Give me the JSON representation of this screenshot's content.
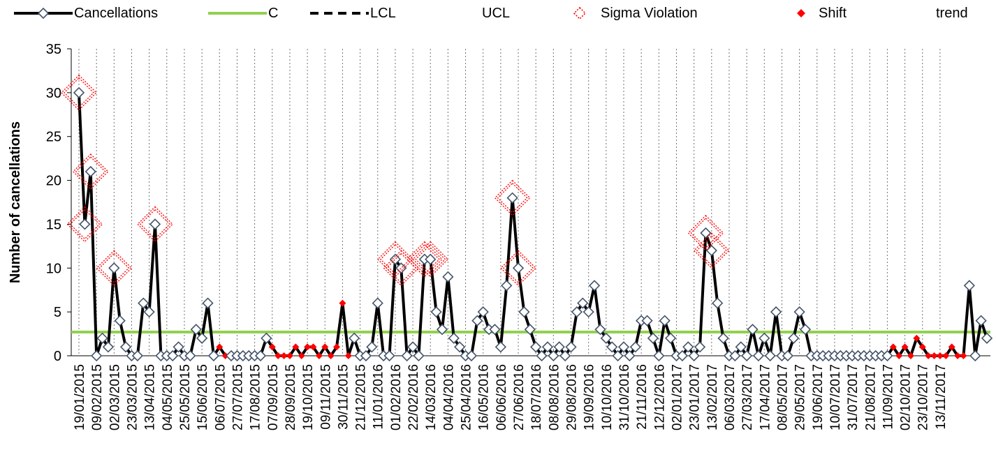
{
  "legend": [
    {
      "label": "Cancellations",
      "symbol": "line-diamond"
    },
    {
      "label": "C",
      "symbol": "green-line"
    },
    {
      "label": "LCL",
      "symbol": "dashed-line"
    },
    {
      "label": "UCL",
      "symbol": "none"
    },
    {
      "label": "Sigma Violation",
      "symbol": "red-dotted-diamond"
    },
    {
      "label": "Shift",
      "symbol": "red-diamond"
    },
    {
      "label": "trend",
      "symbol": "none"
    }
  ],
  "colors": {
    "series": "#000000",
    "marker_edge": "#44546a",
    "center_line": "#92d050",
    "violation": "#ff0000"
  },
  "chart_data": {
    "type": "line",
    "ylabel": "Number of cancellations",
    "ylim": [
      0,
      35
    ],
    "yticks": [
      0,
      5,
      10,
      15,
      20,
      25,
      30,
      35
    ],
    "center_line": 2.7,
    "x_tick_labels": [
      "19/01/2015",
      "09/02/2015",
      "02/03/2015",
      "23/03/2015",
      "13/04/2015",
      "04/05/2015",
      "25/05/2015",
      "15/06/2015",
      "06/07/2015",
      "27/07/2015",
      "17/08/2015",
      "07/09/2015",
      "28/09/2015",
      "19/10/2015",
      "09/11/2015",
      "30/11/2015",
      "21/12/2015",
      "11/01/2016",
      "01/02/2016",
      "22/02/2016",
      "14/03/2016",
      "04/04/2016",
      "25/04/2016",
      "16/05/2016",
      "06/06/2016",
      "27/06/2016",
      "18/07/2016",
      "08/08/2016",
      "29/08/2016",
      "19/09/2016",
      "10/10/2016",
      "31/10/2016",
      "21/11/2016",
      "12/12/2016",
      "02/01/2017",
      "23/01/2017",
      "13/02/2017",
      "06/03/2017",
      "27/03/2017",
      "17/04/2017",
      "08/05/2017",
      "29/05/2017",
      "19/06/2017",
      "10/07/2017",
      "31/07/2017",
      "21/08/2017",
      "11/09/2017",
      "02/10/2017",
      "23/10/2017",
      "13/11/2017"
    ],
    "values": [
      30,
      15,
      21,
      0,
      2,
      1,
      10,
      4,
      1,
      0,
      0,
      6,
      5,
      15,
      0,
      0,
      0,
      1,
      0,
      0,
      3,
      2,
      6,
      0,
      1,
      0,
      0,
      0,
      0,
      0,
      0,
      0,
      2,
      1,
      0,
      0,
      0,
      1,
      0,
      1,
      1,
      0,
      1,
      0,
      1,
      6,
      0,
      2,
      0,
      0,
      1,
      6,
      0,
      0,
      11,
      10,
      0,
      1,
      0,
      11,
      11,
      5,
      3,
      9,
      2,
      1,
      0,
      0,
      4,
      5,
      3,
      3,
      1,
      8,
      18,
      10,
      5,
      3,
      1,
      0,
      1,
      0,
      1,
      0,
      1,
      5,
      6,
      5,
      8,
      3,
      2,
      1,
      0,
      1,
      0,
      1,
      4,
      4,
      2,
      0,
      4,
      2,
      0,
      0,
      1,
      0,
      1,
      14,
      12,
      6,
      2,
      0,
      0,
      1,
      0,
      3,
      0,
      2,
      0,
      5,
      0,
      0,
      2,
      5,
      3,
      0,
      0,
      0,
      0,
      0,
      0,
      0,
      0,
      0,
      0,
      0,
      0,
      0,
      0,
      1,
      0,
      1,
      0,
      2,
      1,
      0,
      0,
      0,
      0,
      1,
      0,
      0,
      8,
      0,
      4,
      2
    ],
    "sigma_violation_indices": [
      0,
      1,
      2,
      6,
      13,
      54,
      55,
      59,
      60,
      74,
      75,
      107,
      108
    ],
    "shift_indices": [
      24,
      25,
      33,
      34,
      35,
      36,
      37,
      38,
      39,
      40,
      41,
      42,
      43,
      44,
      45,
      46,
      139,
      140,
      141,
      142,
      143,
      144,
      145,
      146,
      147,
      148,
      149,
      150,
      151
    ]
  }
}
